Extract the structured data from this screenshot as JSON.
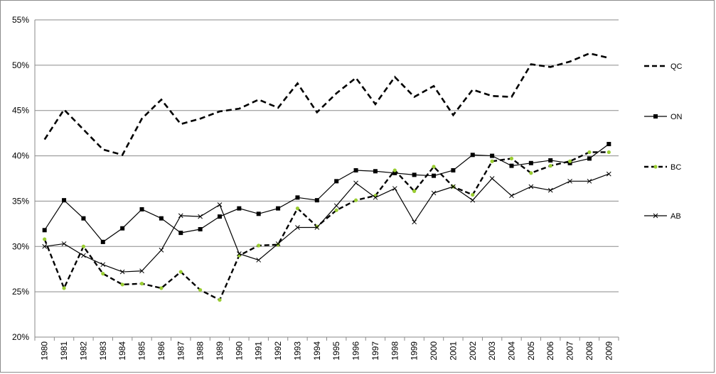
{
  "chart_data": {
    "type": "line",
    "x": [
      "1980",
      "1981",
      "1982",
      "1983",
      "1984",
      "1985",
      "1986",
      "1987",
      "1988",
      "1989",
      "1990",
      "1991",
      "1992",
      "1993",
      "1994",
      "1995",
      "1996",
      "1997",
      "1998",
      "1999",
      "2000",
      "2001",
      "2002",
      "2003",
      "2004",
      "2005",
      "2006",
      "2007",
      "2008",
      "2009"
    ],
    "ylim": [
      0.2,
      0.55
    ],
    "yticks": [
      0.2,
      0.25,
      0.3,
      0.35,
      0.4,
      0.45,
      0.5,
      0.55
    ],
    "ytick_labels": [
      "20%",
      "25%",
      "30%",
      "35%",
      "40%",
      "45%",
      "50%",
      "55%"
    ],
    "grid": true,
    "legend_position": "right",
    "series": [
      {
        "name": "QC",
        "style": "dashed-thick",
        "color": "#000000",
        "values": [
          0.418,
          0.451,
          0.429,
          0.407,
          0.401,
          0.441,
          0.462,
          0.435,
          0.441,
          0.449,
          0.452,
          0.462,
          0.453,
          0.48,
          0.448,
          0.469,
          0.486,
          0.457,
          0.487,
          0.465,
          0.477,
          0.445,
          0.473,
          0.466,
          0.465,
          0.501,
          0.498,
          0.504,
          0.513,
          0.508
        ]
      },
      {
        "name": "ON",
        "style": "solid-square",
        "color": "#000000",
        "values": [
          0.318,
          0.351,
          0.331,
          0.305,
          0.32,
          0.341,
          0.331,
          0.315,
          0.319,
          0.333,
          0.342,
          0.336,
          0.342,
          0.354,
          0.351,
          0.372,
          0.384,
          0.383,
          0.381,
          0.379,
          0.378,
          0.384,
          0.401,
          0.4,
          0.389,
          0.392,
          0.395,
          0.392,
          0.397,
          0.413
        ]
      },
      {
        "name": "BC",
        "style": "dashed-dot",
        "color": "#000000",
        "marker_color": "#9acd32",
        "values": [
          0.308,
          0.254,
          0.3,
          0.27,
          0.258,
          0.259,
          0.254,
          0.272,
          0.252,
          0.241,
          0.29,
          0.301,
          0.302,
          0.342,
          0.322,
          0.34,
          0.351,
          0.356,
          0.384,
          0.361,
          0.388,
          0.366,
          0.357,
          0.394,
          0.397,
          0.381,
          0.389,
          0.394,
          0.404,
          0.404
        ]
      },
      {
        "name": "AB",
        "style": "solid-x",
        "color": "#000000",
        "values": [
          0.3,
          0.303,
          0.29,
          0.28,
          0.272,
          0.273,
          0.296,
          0.334,
          0.333,
          0.346,
          0.292,
          0.285,
          0.303,
          0.321,
          0.321,
          0.345,
          0.37,
          0.354,
          0.364,
          0.327,
          0.359,
          0.366,
          0.351,
          0.375,
          0.356,
          0.366,
          0.362,
          0.372,
          0.372,
          0.38
        ]
      }
    ]
  }
}
